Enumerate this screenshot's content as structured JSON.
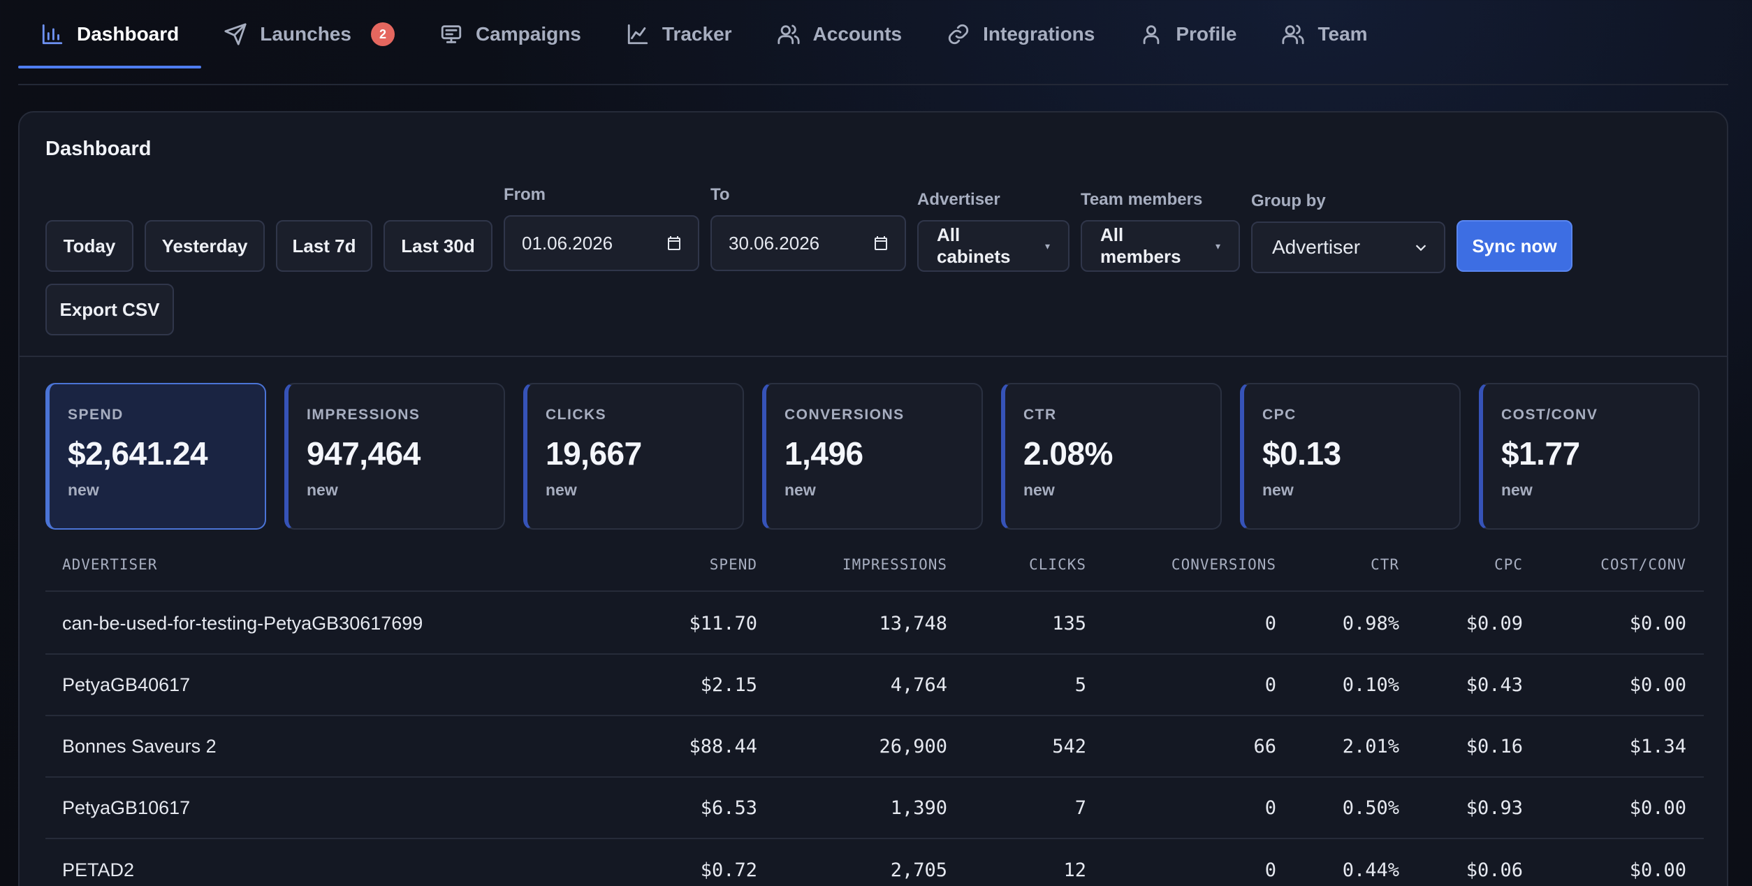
{
  "nav": {
    "tabs": [
      {
        "label": "Dashboard",
        "icon": "bar-chart-icon",
        "active": true
      },
      {
        "label": "Launches",
        "icon": "send-icon",
        "badge": "2"
      },
      {
        "label": "Campaigns",
        "icon": "presentation-icon"
      },
      {
        "label": "Tracker",
        "icon": "line-chart-icon"
      },
      {
        "label": "Accounts",
        "icon": "users-icon"
      },
      {
        "label": "Integrations",
        "icon": "link-icon"
      },
      {
        "label": "Profile",
        "icon": "user-icon"
      },
      {
        "label": "Team",
        "icon": "users-icon"
      }
    ]
  },
  "dashboard": {
    "title": "Dashboard",
    "quick_ranges": [
      "Today",
      "Yesterday",
      "Last 7d",
      "Last 30d"
    ],
    "from": {
      "label": "From",
      "value": "01.06.2026"
    },
    "to": {
      "label": "To",
      "value": "30.06.2026"
    },
    "advertiser": {
      "label": "Advertiser",
      "value": "All cabinets"
    },
    "team_members": {
      "label": "Team members",
      "value": "All members"
    },
    "group_by": {
      "label": "Group by",
      "value": "Advertiser"
    },
    "sync_label": "Sync now",
    "export_label": "Export CSV"
  },
  "stats": [
    {
      "label": "SPEND",
      "value": "$2,641.24",
      "sub": "new",
      "active": true
    },
    {
      "label": "IMPRESSIONS",
      "value": "947,464",
      "sub": "new"
    },
    {
      "label": "CLICKS",
      "value": "19,667",
      "sub": "new"
    },
    {
      "label": "CONVERSIONS",
      "value": "1,496",
      "sub": "new"
    },
    {
      "label": "CTR",
      "value": "2.08%",
      "sub": "new"
    },
    {
      "label": "CPC",
      "value": "$0.13",
      "sub": "new"
    },
    {
      "label": "COST/CONV",
      "value": "$1.77",
      "sub": "new"
    }
  ],
  "table": {
    "columns": [
      "ADVERTISER",
      "SPEND",
      "IMPRESSIONS",
      "CLICKS",
      "CONVERSIONS",
      "CTR",
      "CPC",
      "COST/CONV"
    ],
    "rows": [
      [
        "can-be-used-for-testing-PetyaGB30617699",
        "$11.70",
        "13,748",
        "135",
        "0",
        "0.98%",
        "$0.09",
        "$0.00"
      ],
      [
        "PetyaGB40617",
        "$2.15",
        "4,764",
        "5",
        "0",
        "0.10%",
        "$0.43",
        "$0.00"
      ],
      [
        "Bonnes Saveurs 2",
        "$88.44",
        "26,900",
        "542",
        "66",
        "2.01%",
        "$0.16",
        "$1.34"
      ],
      [
        "PetyaGB10617",
        "$6.53",
        "1,390",
        "7",
        "0",
        "0.50%",
        "$0.93",
        "$0.00"
      ],
      [
        "PETAD2",
        "$0.72",
        "2,705",
        "12",
        "0",
        "0.44%",
        "$0.06",
        "$0.00"
      ]
    ]
  },
  "colors": {
    "accent": "#3d6ee3",
    "badge": "#e5675f",
    "background": "#0c0f18",
    "card": "#141823"
  }
}
